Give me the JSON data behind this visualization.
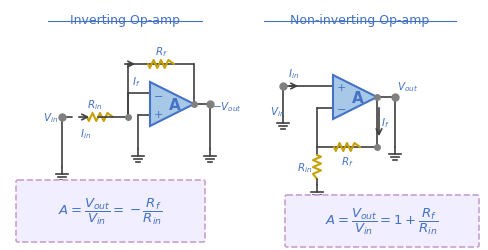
{
  "fig_width": 4.89,
  "fig_height": 2.51,
  "dpi": 100,
  "bg_color": "#ffffff",
  "title_color": "#4472c4",
  "label_color": "#4472c4",
  "wire_color": "#404040",
  "resistor_color": "#c8a000",
  "node_color": "#808080",
  "opamp_fill": "#a8c8e8",
  "opamp_edge": "#4472c4",
  "formula_box_color": "#c8a0d0",
  "formula_text_color": "#4472c4",
  "formula_bg": "#f0eeff",
  "title1": "Inverting Op-amp",
  "title2": "Non-inverting Op-amp"
}
